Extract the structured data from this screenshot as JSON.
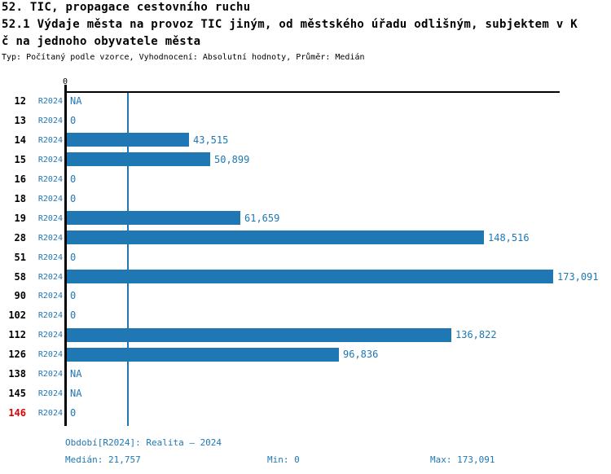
{
  "header": {
    "title": "52. TIC, propagace cestovního ruchu",
    "subtitle_line1": "52.1 Výdaje města na provoz TIC jiným, od městského úřadu odlišným, subjektem v K",
    "subtitle_line2": "č na jednoho obyvatele města",
    "meta": "Typ: Počítaný podle vzorce, Vyhodnocení: Absolutní hodnoty, Průměr: Medián"
  },
  "chart_data": {
    "type": "bar",
    "orientation": "horizontal",
    "title": "52.1 Výdaje města na provoz TIC jiným, od městského úřadu odlišným, subjektem v Kč na jednoho obyvatele města",
    "xlabel": "",
    "ylabel": "",
    "axis_tick_label": "0",
    "xlim": [
      0,
      175000
    ],
    "grid": false,
    "series_label": "R2024",
    "categories": [
      "12",
      "13",
      "14",
      "15",
      "16",
      "18",
      "19",
      "28",
      "51",
      "58",
      "90",
      "102",
      "112",
      "126",
      "138",
      "145",
      "146"
    ],
    "values": [
      null,
      0,
      43515,
      50899,
      0,
      0,
      61659,
      148516,
      0,
      173091,
      0,
      0,
      136822,
      96836,
      null,
      null,
      0
    ],
    "value_labels": [
      "NA",
      "0",
      "43,515",
      "50,899",
      "0",
      "0",
      "61,659",
      "148,516",
      "0",
      "173,091",
      "0",
      "0",
      "136,822",
      "96,836",
      "NA",
      "NA",
      "0"
    ],
    "highlight_category": "146",
    "median_value": 21757,
    "min_value": 0,
    "max_value": 173091,
    "colors": {
      "bar": "#1f77b4",
      "median_line": "#1f77b4",
      "value_label": "#1f77b4",
      "category_label": "#000000",
      "highlight_category_label": "#e00000"
    }
  },
  "footer": {
    "period": "Období[R2024]: Realita – 2024",
    "median": "Medián: 21,757",
    "min": "Min: 0",
    "max": "Max: 173,091"
  }
}
